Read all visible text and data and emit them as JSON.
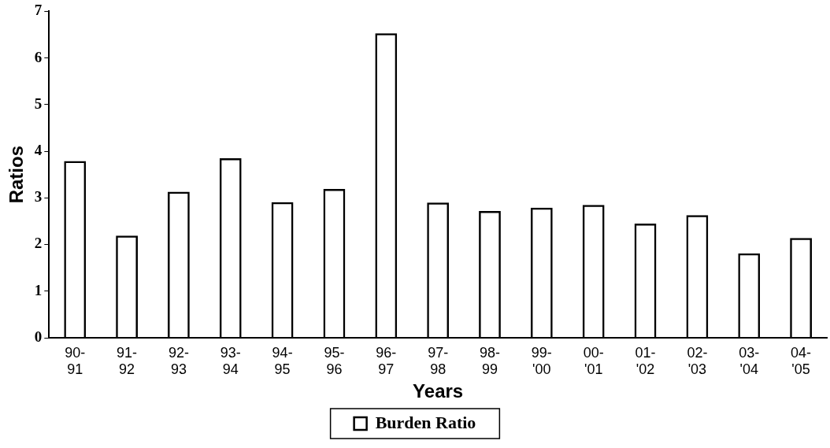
{
  "chart_data": {
    "type": "bar",
    "xlabel": "Years",
    "ylabel": "Ratios",
    "categories": [
      "90-\n91",
      "91-\n92",
      "92-\n93",
      "93-\n94",
      "94-\n95",
      "95-\n96",
      "96-\n97",
      "97-\n98",
      "98-\n99",
      "99-\n'00",
      "00-\n'01",
      "01-\n'02",
      "02-\n'03",
      "03-\n'04",
      "04-\n'05"
    ],
    "series": [
      {
        "name": "Burden Ratio",
        "color": "#000000",
        "values": [
          3.79,
          2.19,
          3.13,
          3.85,
          2.91,
          3.19,
          6.53,
          2.9,
          2.72,
          2.79,
          2.85,
          2.45,
          2.63,
          1.81,
          2.14
        ]
      }
    ],
    "ylim": [
      0,
      7
    ],
    "yticks": [
      0,
      1,
      2,
      3,
      4,
      5,
      6,
      7
    ],
    "grid": false,
    "legend": "bottom"
  }
}
